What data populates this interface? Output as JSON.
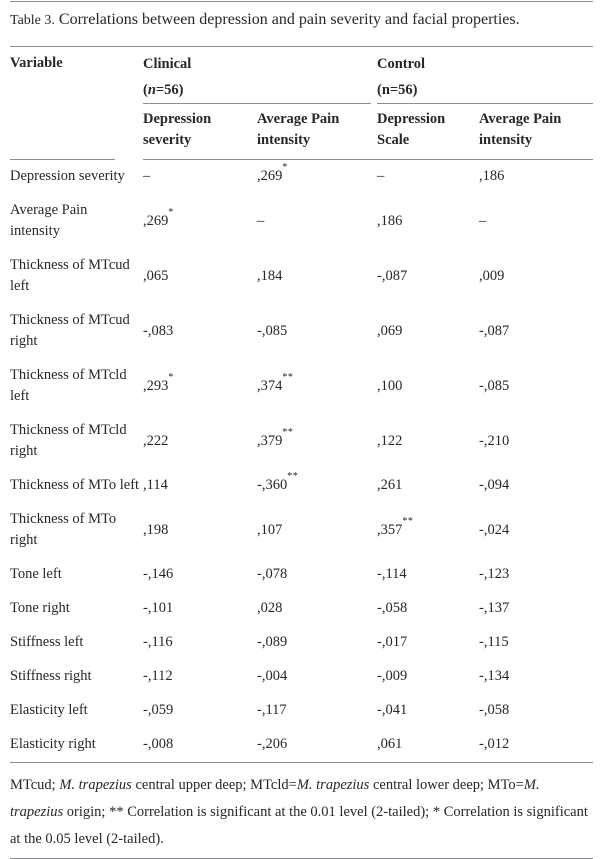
{
  "title": {
    "label": "Table 3.",
    "text": "Correlations between depression and pain severity and facial properties."
  },
  "table": {
    "variable_header": "Variable",
    "groups": [
      {
        "name": "Clinical",
        "n_segments": [
          {
            "t": "("
          },
          {
            "t": "n",
            "i": true
          },
          {
            "t": "=56)"
          }
        ]
      },
      {
        "name": "Control",
        "n_segments": [
          {
            "t": "(n=56)"
          }
        ]
      }
    ],
    "subheaders": [
      {
        "lines": [
          "Depression",
          "severity"
        ]
      },
      {
        "lines": [
          "Average Pain",
          "intensity"
        ]
      },
      {
        "lines": [
          "Depression",
          "Scale"
        ]
      },
      {
        "lines": [
          "Average Pain",
          "intensity"
        ]
      }
    ],
    "rows": [
      {
        "label_lines": [
          "Depression severity"
        ],
        "values": [
          "–",
          ",269*",
          "–",
          ",186"
        ]
      },
      {
        "label_lines": [
          "Average Pain",
          "intensity"
        ],
        "values": [
          ",269*",
          "–",
          ",186",
          "–"
        ]
      },
      {
        "label_lines": [
          "Thickness of MTcud",
          "left"
        ],
        "values": [
          ",065",
          ",184",
          "-,087",
          ",009"
        ]
      },
      {
        "label_lines": [
          "Thickness of MTcud",
          "right"
        ],
        "values": [
          "-,083",
          "-,085",
          ",069",
          "-,087"
        ]
      },
      {
        "label_lines": [
          "Thickness of MTcld",
          "left"
        ],
        "values": [
          ",293*",
          ",374**",
          ",100",
          "-,085"
        ]
      },
      {
        "label_lines": [
          "Thickness of MTcld",
          "right"
        ],
        "values": [
          ",222",
          ",379**",
          ",122",
          "-,210"
        ]
      },
      {
        "label_lines": [
          "Thickness of MTo left"
        ],
        "values": [
          ",114",
          "-,360**",
          ",261",
          "-,094"
        ]
      },
      {
        "label_lines": [
          "Thickness of MTo",
          "right"
        ],
        "values": [
          ",198",
          ",107",
          ",357**",
          "-,024"
        ]
      },
      {
        "label_lines": [
          "Tone left"
        ],
        "values": [
          "-,146",
          "-,078",
          "-,114",
          "-,123"
        ]
      },
      {
        "label_lines": [
          "Tone right"
        ],
        "values": [
          "-,101",
          ",028",
          "-,058",
          "-,137"
        ]
      },
      {
        "label_lines": [
          "Stiffness left"
        ],
        "values": [
          "-,116",
          "-,089",
          "-,017",
          "-,115"
        ]
      },
      {
        "label_lines": [
          "Stiffness right"
        ],
        "values": [
          "-,112",
          "-,004",
          "-,009",
          "-,134"
        ]
      },
      {
        "label_lines": [
          "Elasticity left"
        ],
        "values": [
          "-,059",
          "-,117",
          "-,041",
          "-,058"
        ]
      },
      {
        "label_lines": [
          "Elasticity right"
        ],
        "values": [
          "-,008",
          "-,206",
          ",061",
          "-,012"
        ]
      }
    ]
  },
  "footnote_segments": [
    {
      "t": "MTcud; "
    },
    {
      "t": "M. trapezius",
      "i": true
    },
    {
      "t": " central upper deep; MTcld="
    },
    {
      "t": "M. trapezius",
      "i": true
    },
    {
      "t": " central lower deep; MTo="
    },
    {
      "t": "M. trapezius",
      "i": true
    },
    {
      "t": " origin; ** Correlation is significant at the 0.01 level (2-tailed); * Correlation is significant at the 0.05 level (2-tailed)."
    }
  ],
  "colors": {
    "text": "#26272b",
    "rule": "#8b8d90",
    "background": "#ffffff"
  }
}
